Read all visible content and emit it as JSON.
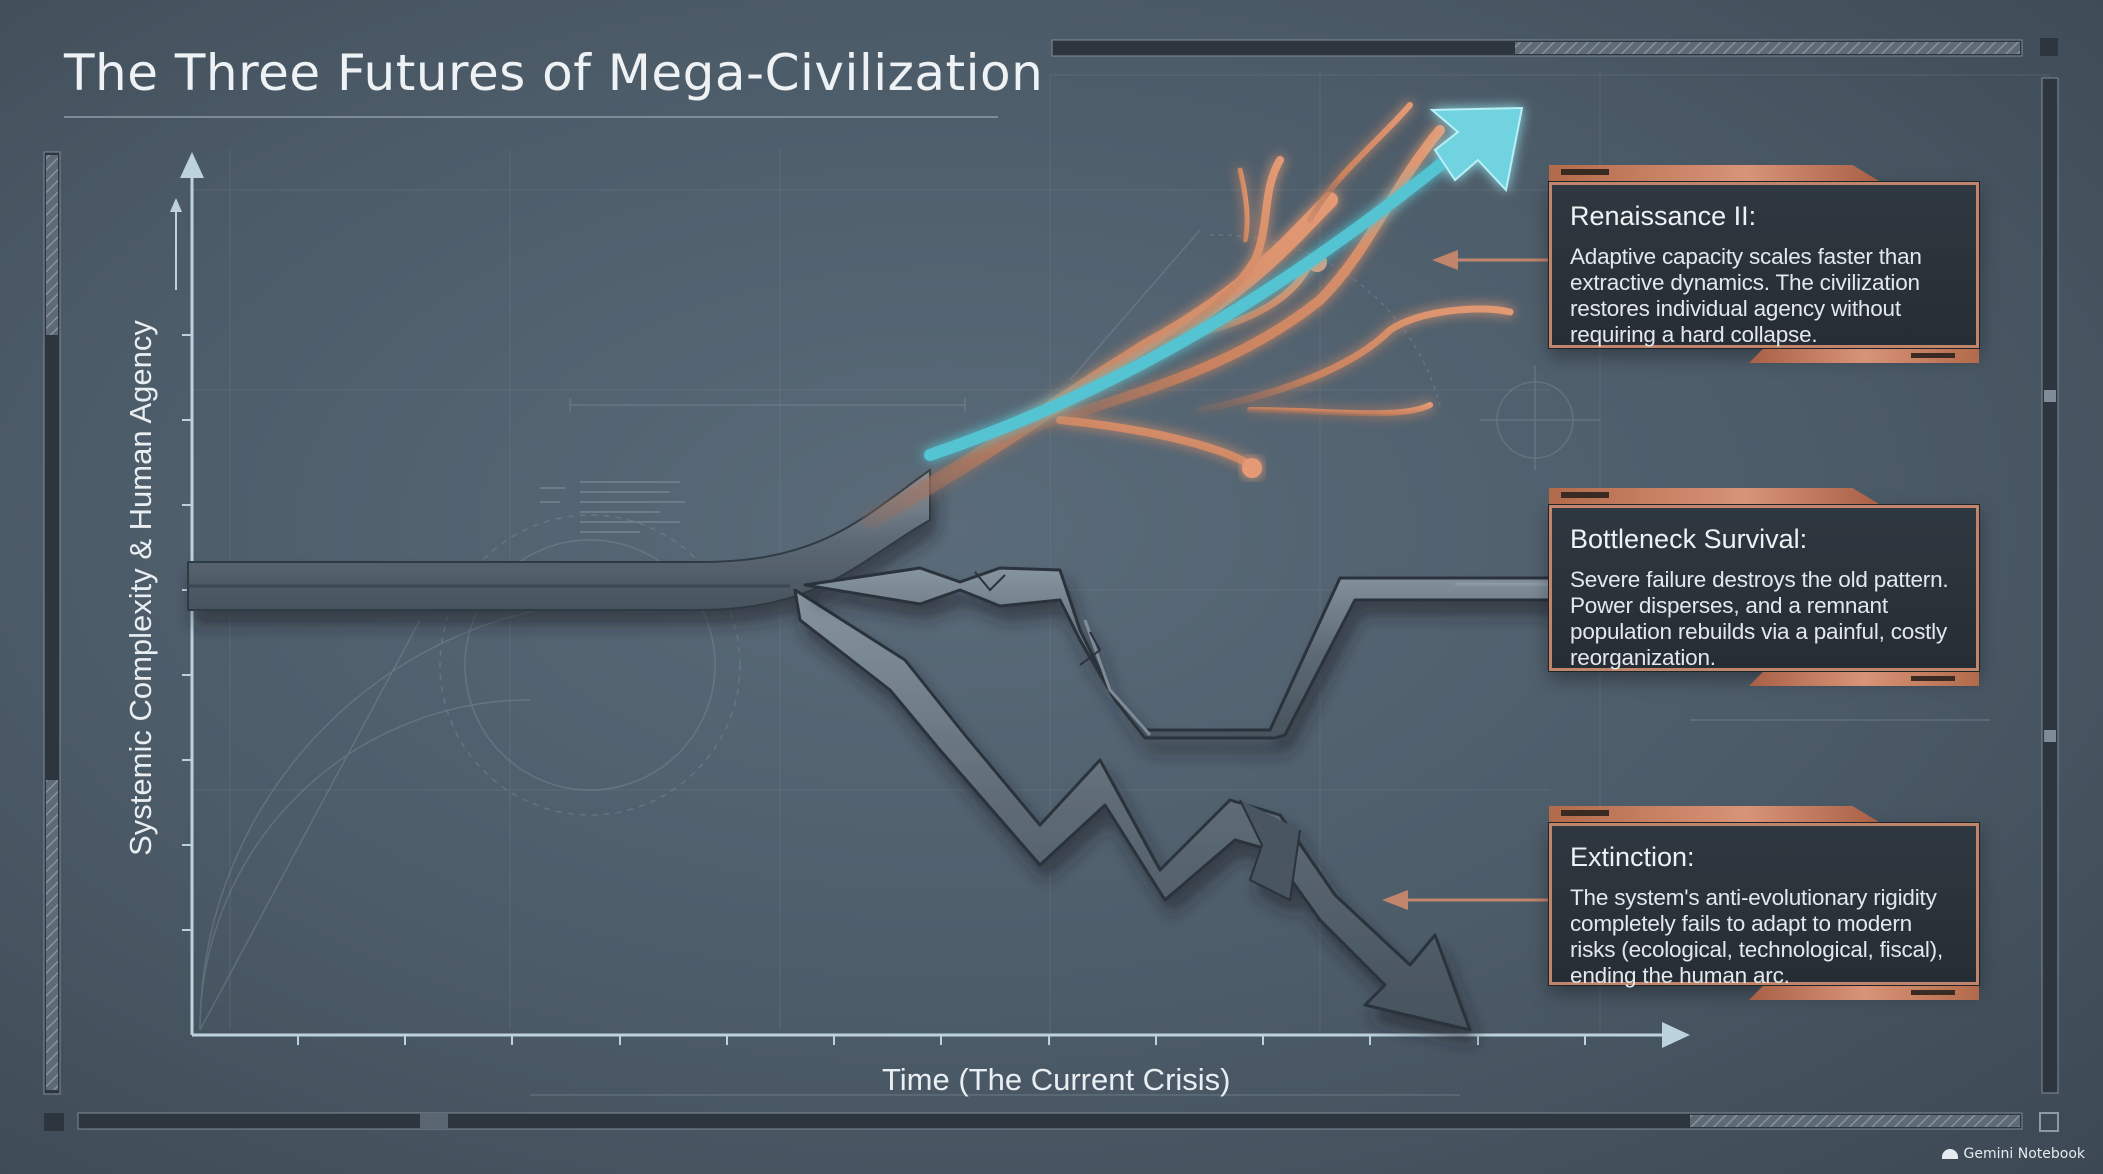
{
  "title": "The Three Futures of Mega-Civilization",
  "axes": {
    "y_label": "Systemic Complexity & Human Agency",
    "x_label": "Time (The Current Crisis)"
  },
  "futures": [
    {
      "title": "Renaissance II:",
      "body": "Adaptive capacity scales faster than extractive dynamics. The civilization restores individual agency without requiring a hard collapse.",
      "path": "rising branching arrow"
    },
    {
      "title": "Bottleneck Survival:",
      "body": "Severe failure destroys the old pattern. Power disperses, and a remnant population rebuilds via a painful, costly reorganization.",
      "path": "broken dip then recovery"
    },
    {
      "title": "Extinction:",
      "body": "The system's anti-evolutionary rigidity completely fails to adapt to modern risks (ecological, technological, fiscal), ending the human arc.",
      "path": "jagged descending arrow"
    }
  ],
  "colors": {
    "background": "#4c5b68",
    "copper": "#d58a68",
    "cyan": "#6fd3df",
    "steel": "#6a7883",
    "text": "#eef2f5"
  },
  "branding": "Gemini Notebook"
}
